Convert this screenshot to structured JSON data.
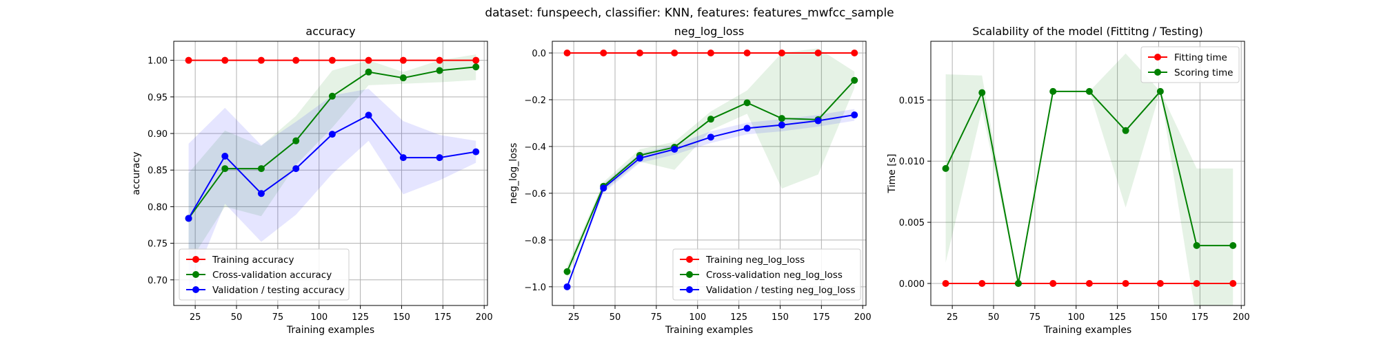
{
  "suptitle": "dataset: funspeech, classifier: KNN, features: features_mwfcc_sample",
  "colors": {
    "train": "#ff0000",
    "cv": "#008000",
    "val": "#0000ff",
    "grid": "#b0b0b0"
  },
  "chart_data": [
    {
      "type": "line",
      "title": "accuracy",
      "xlabel": "Training examples",
      "ylabel": "accuracy",
      "xlim": [
        12,
        202
      ],
      "ylim": [
        0.665,
        1.026
      ],
      "xticks": [
        25,
        50,
        75,
        100,
        125,
        150,
        175,
        200
      ],
      "yticks": [
        0.7,
        0.75,
        0.8,
        0.85,
        0.9,
        0.95,
        1.0
      ],
      "ytick_labels": [
        "0.70",
        "0.75",
        "0.80",
        "0.85",
        "0.90",
        "0.95",
        "1.00"
      ],
      "grid": true,
      "legend_position": "lower-left",
      "x": [
        21,
        43,
        65,
        86,
        108,
        130,
        151,
        173,
        195
      ],
      "series": [
        {
          "name": "Training accuracy",
          "color": "#ff0000",
          "values": [
            1.0,
            1.0,
            1.0,
            1.0,
            1.0,
            1.0,
            1.0,
            1.0,
            1.0
          ],
          "band_lower": [
            1.0,
            1.0,
            1.0,
            1.0,
            1.0,
            1.0,
            1.0,
            1.0,
            1.0
          ],
          "band_upper": [
            1.0,
            1.0,
            1.0,
            1.0,
            1.0,
            1.0,
            1.0,
            1.0,
            1.0
          ]
        },
        {
          "name": "Cross-validation accuracy",
          "color": "#008000",
          "values": [
            0.784,
            0.852,
            0.852,
            0.89,
            0.951,
            0.984,
            0.976,
            0.986,
            0.991
          ],
          "band_lower": [
            0.722,
            0.8,
            0.787,
            0.857,
            0.908,
            0.966,
            0.968,
            0.97,
            0.973
          ],
          "band_upper": [
            0.846,
            0.904,
            0.883,
            0.924,
            0.986,
            1.0,
            0.984,
            1.0,
            1.008
          ]
        },
        {
          "name": "Validation / testing accuracy",
          "color": "#0000ff",
          "values": [
            0.784,
            0.869,
            0.818,
            0.852,
            0.899,
            0.925,
            0.867,
            0.867,
            0.875
          ],
          "band_lower": [
            0.682,
            0.804,
            0.752,
            0.789,
            0.845,
            0.89,
            0.817,
            0.836,
            0.86
          ],
          "band_upper": [
            0.886,
            0.935,
            0.884,
            0.916,
            0.952,
            0.961,
            0.917,
            0.898,
            0.89
          ]
        }
      ]
    },
    {
      "type": "line",
      "title": "neg_log_loss",
      "xlabel": "Training examples",
      "ylabel": "neg_log_loss",
      "xlim": [
        12,
        202
      ],
      "ylim": [
        -1.08,
        0.05
      ],
      "xticks": [
        25,
        50,
        75,
        100,
        125,
        150,
        175,
        200
      ],
      "yticks": [
        -1.0,
        -0.8,
        -0.6,
        -0.4,
        -0.2,
        0.0
      ],
      "ytick_labels": [
        "−1.0",
        "−0.8",
        "−0.6",
        "−0.4",
        "−0.2",
        "0.0"
      ],
      "grid": true,
      "legend_position": "lower-right",
      "x": [
        21,
        43,
        65,
        86,
        108,
        130,
        151,
        173,
        195
      ],
      "series": [
        {
          "name": "Training neg_log_loss",
          "color": "#ff0000",
          "values": [
            0,
            0,
            0,
            0,
            0,
            0,
            0,
            0,
            0
          ],
          "band_lower": [
            0,
            0,
            0,
            0,
            0,
            0,
            0,
            0,
            0
          ],
          "band_upper": [
            0,
            0,
            0,
            0,
            0,
            0,
            0,
            0,
            0
          ]
        },
        {
          "name": "Cross-validation neg_log_loss",
          "color": "#008000",
          "values": [
            -0.935,
            -0.57,
            -0.438,
            -0.403,
            -0.283,
            -0.213,
            -0.28,
            -0.285,
            -0.117
          ],
          "band_lower": [
            -0.96,
            -0.59,
            -0.465,
            -0.5,
            -0.33,
            -0.26,
            -0.58,
            -0.52,
            -0.15
          ],
          "band_upper": [
            -0.91,
            -0.552,
            -0.412,
            -0.38,
            -0.25,
            -0.16,
            0.0,
            0.02,
            -0.08
          ]
        },
        {
          "name": "Validation / testing neg_log_loss",
          "color": "#0000ff",
          "values": [
            -1.0,
            -0.578,
            -0.45,
            -0.412,
            -0.36,
            -0.322,
            -0.308,
            -0.29,
            -0.265
          ],
          "band_lower": [
            -1.0,
            -0.598,
            -0.47,
            -0.435,
            -0.385,
            -0.348,
            -0.335,
            -0.315,
            -0.29
          ],
          "band_upper": [
            -1.0,
            -0.56,
            -0.43,
            -0.392,
            -0.335,
            -0.298,
            -0.283,
            -0.265,
            -0.24
          ]
        }
      ]
    },
    {
      "type": "line",
      "title": "Scalability of the model (Fittitng / Testing)",
      "xlabel": "Training examples",
      "ylabel": "Time [s]",
      "xlim": [
        12,
        202
      ],
      "ylim": [
        -0.0018,
        0.0198
      ],
      "xticks": [
        25,
        50,
        75,
        100,
        125,
        150,
        175,
        200
      ],
      "yticks": [
        0.0,
        0.005,
        0.01,
        0.015
      ],
      "ytick_labels": [
        "0.000",
        "0.005",
        "0.010",
        "0.015"
      ],
      "grid": true,
      "legend_position": "upper-right",
      "x": [
        21,
        43,
        65,
        86,
        108,
        130,
        151,
        173,
        195
      ],
      "series": [
        {
          "name": "Fitting time",
          "color": "#ff0000",
          "values": [
            0,
            0,
            0,
            0,
            0,
            0,
            0,
            0,
            0
          ],
          "band_lower": [
            0,
            0,
            0,
            0,
            0,
            0,
            0,
            0,
            0
          ],
          "band_upper": [
            0,
            0,
            0,
            0,
            0,
            0,
            0,
            0,
            0
          ]
        },
        {
          "name": "Scoring time",
          "color": "#008000",
          "values": [
            0.0094,
            0.0156,
            0.0,
            0.0157,
            0.0157,
            0.0125,
            0.0157,
            0.0031,
            0.0031
          ],
          "band_lower": [
            0.0017,
            0.0142,
            0.0,
            0.0157,
            0.0157,
            0.0062,
            0.0157,
            -0.0031,
            -0.0031
          ],
          "band_upper": [
            0.0171,
            0.017,
            0.0,
            0.0157,
            0.0157,
            0.0188,
            0.0157,
            0.0094,
            0.0094
          ]
        }
      ]
    }
  ]
}
